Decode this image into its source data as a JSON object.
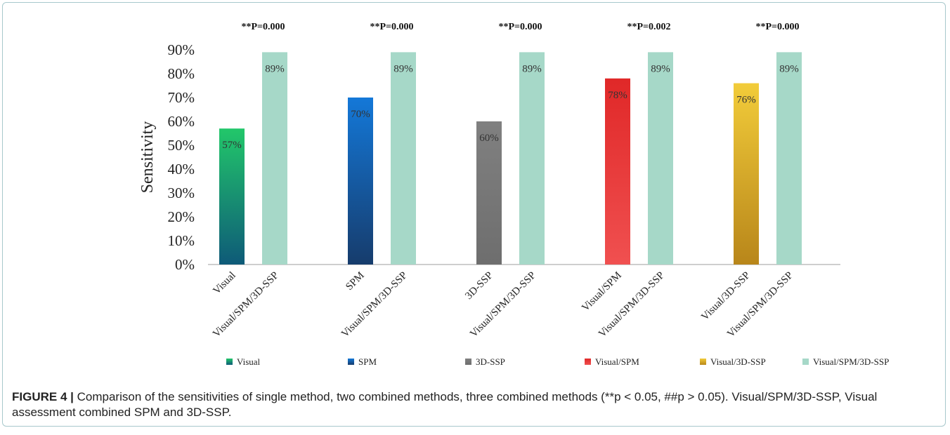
{
  "caption": {
    "label": "FIGURE 4 |",
    "text": "Comparison of the sensitivities of single method, two combined methods, three combined methods (**p < 0.05, ##p > 0.05). Visual/SPM/3D-SSP, Visual assessment combined SPM and 3D-SSP."
  },
  "chart_data": {
    "type": "bar",
    "ylabel": "Sensitivity",
    "ylim": [
      0,
      90
    ],
    "yticks": [
      "0%",
      "10%",
      "20%",
      "30%",
      "40%",
      "50%",
      "60%",
      "70%",
      "80%",
      "90%"
    ],
    "groups": [
      {
        "p_value": "**P=0.000",
        "bars": [
          {
            "category": "Visual",
            "series": "Visual",
            "value": 57,
            "label": "57%"
          },
          {
            "category": "Visual/SPM/3D-SSP",
            "series": "Visual/SPM/3D-SSP",
            "value": 89,
            "label": "89%"
          }
        ]
      },
      {
        "p_value": "**P=0.000",
        "bars": [
          {
            "category": "SPM",
            "series": "SPM",
            "value": 70,
            "label": "70%"
          },
          {
            "category": "Visual/SPM/3D-SSP",
            "series": "Visual/SPM/3D-SSP",
            "value": 89,
            "label": "89%"
          }
        ]
      },
      {
        "p_value": "**P=0.000",
        "bars": [
          {
            "category": "3D-SSP",
            "series": "3D-SSP",
            "value": 60,
            "label": "60%"
          },
          {
            "category": "Visual/SPM/3D-SSP",
            "series": "Visual/SPM/3D-SSP",
            "value": 89,
            "label": "89%"
          }
        ]
      },
      {
        "p_value": "**P=0.002",
        "bars": [
          {
            "category": "Visual/SPM",
            "series": "Visual/SPM",
            "value": 78,
            "label": "78%"
          },
          {
            "category": "Visual/SPM/3D-SSP",
            "series": "Visual/SPM/3D-SSP",
            "value": 89,
            "label": "89%"
          }
        ]
      },
      {
        "p_value": "**P=0.000",
        "bars": [
          {
            "category": "Visual/3D-SSP",
            "series": "Visual/3D-SSP",
            "value": 76,
            "label": "76%"
          },
          {
            "category": "Visual/SPM/3D-SSP",
            "series": "Visual/SPM/3D-SSP",
            "value": 89,
            "label": "89%"
          }
        ]
      }
    ],
    "legend": [
      {
        "name": "Visual",
        "color_top": "#22c76a",
        "color_bottom": "#0e5a78"
      },
      {
        "name": "SPM",
        "color_top": "#1478d8",
        "color_bottom": "#163c6c"
      },
      {
        "name": "3D-SSP",
        "color_top": "#808080",
        "color_bottom": "#6e6e6e"
      },
      {
        "name": "Visual/SPM",
        "color_top": "#e02828",
        "color_bottom": "#f05050"
      },
      {
        "name": "Visual/3D-SSP",
        "color_top": "#f2cc3a",
        "color_bottom": "#b8861a"
      },
      {
        "name": "Visual/SPM/3D-SSP",
        "color_top": "#a6d8c8",
        "color_bottom": "#a6d8c8"
      }
    ],
    "legend_position": "bottom",
    "grid": false
  }
}
